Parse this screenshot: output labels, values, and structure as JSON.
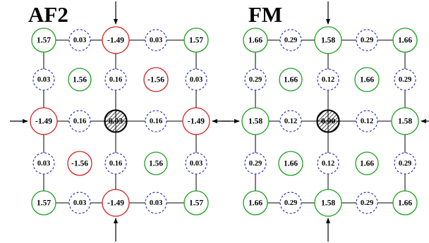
{
  "colors": {
    "positive": "#1aa01a",
    "negative": "#d42020",
    "bond": "#1c24c4",
    "line": "#000000",
    "hatch": "#000000"
  },
  "panels": [
    {
      "id": "af2",
      "title": "AF2",
      "corner": "1.57",
      "edge_mid": "-1.49",
      "bond": "0.03",
      "inner_bond": "0.16",
      "center": "0.03",
      "plaquette_main": "1.56",
      "plaquette_anti": "-1.56",
      "edge_mid_sign": "negative",
      "plaquette_anti_sign": "negative"
    },
    {
      "id": "fm",
      "title": "FM",
      "corner": "1.66",
      "edge_mid": "1.58",
      "bond": "0.29",
      "inner_bond": "0.12",
      "center": "0.00",
      "plaquette_main": "1.66",
      "plaquette_anti": "1.66",
      "edge_mid_sign": "positive",
      "plaquette_anti_sign": "positive"
    }
  ]
}
